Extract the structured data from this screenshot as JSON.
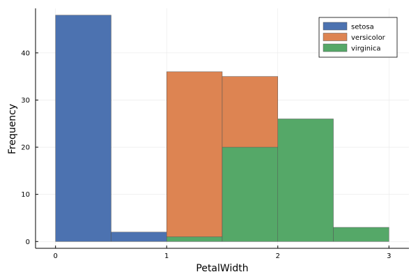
{
  "chart_data": {
    "type": "bar",
    "title": "",
    "xlabel": "PetalWidth",
    "ylabel": "Frequency",
    "xlim": [
      -0.18,
      3.18
    ],
    "ylim": [
      -1.44,
      49.44
    ],
    "xticks": [
      0,
      1,
      2,
      3
    ],
    "yticks": [
      0,
      10,
      20,
      30,
      40
    ],
    "grid": true,
    "legend_position": "top-right",
    "bin_edges": [
      0,
      0.5,
      1.0,
      1.5,
      2.0,
      2.5,
      3.0
    ],
    "series": [
      {
        "name": "setosa",
        "color": "#4c72b0",
        "bins": [
          {
            "x0": 0.0,
            "x1": 0.5,
            "count": 48
          },
          {
            "x0": 0.5,
            "x1": 1.0,
            "count": 2
          }
        ]
      },
      {
        "name": "versicolor",
        "color": "#dd8452",
        "bins": [
          {
            "x0": 1.0,
            "x1": 1.5,
            "count": 36
          },
          {
            "x0": 1.5,
            "x1": 2.0,
            "count": 35
          }
        ]
      },
      {
        "name": "virginica",
        "color": "#55a868",
        "bins": [
          {
            "x0": 1.0,
            "x1": 1.5,
            "count": 1
          },
          {
            "x0": 1.5,
            "x1": 2.0,
            "count": 20
          },
          {
            "x0": 2.0,
            "x1": 2.5,
            "count": 26
          },
          {
            "x0": 2.5,
            "x1": 3.0,
            "count": 3
          }
        ]
      }
    ]
  }
}
